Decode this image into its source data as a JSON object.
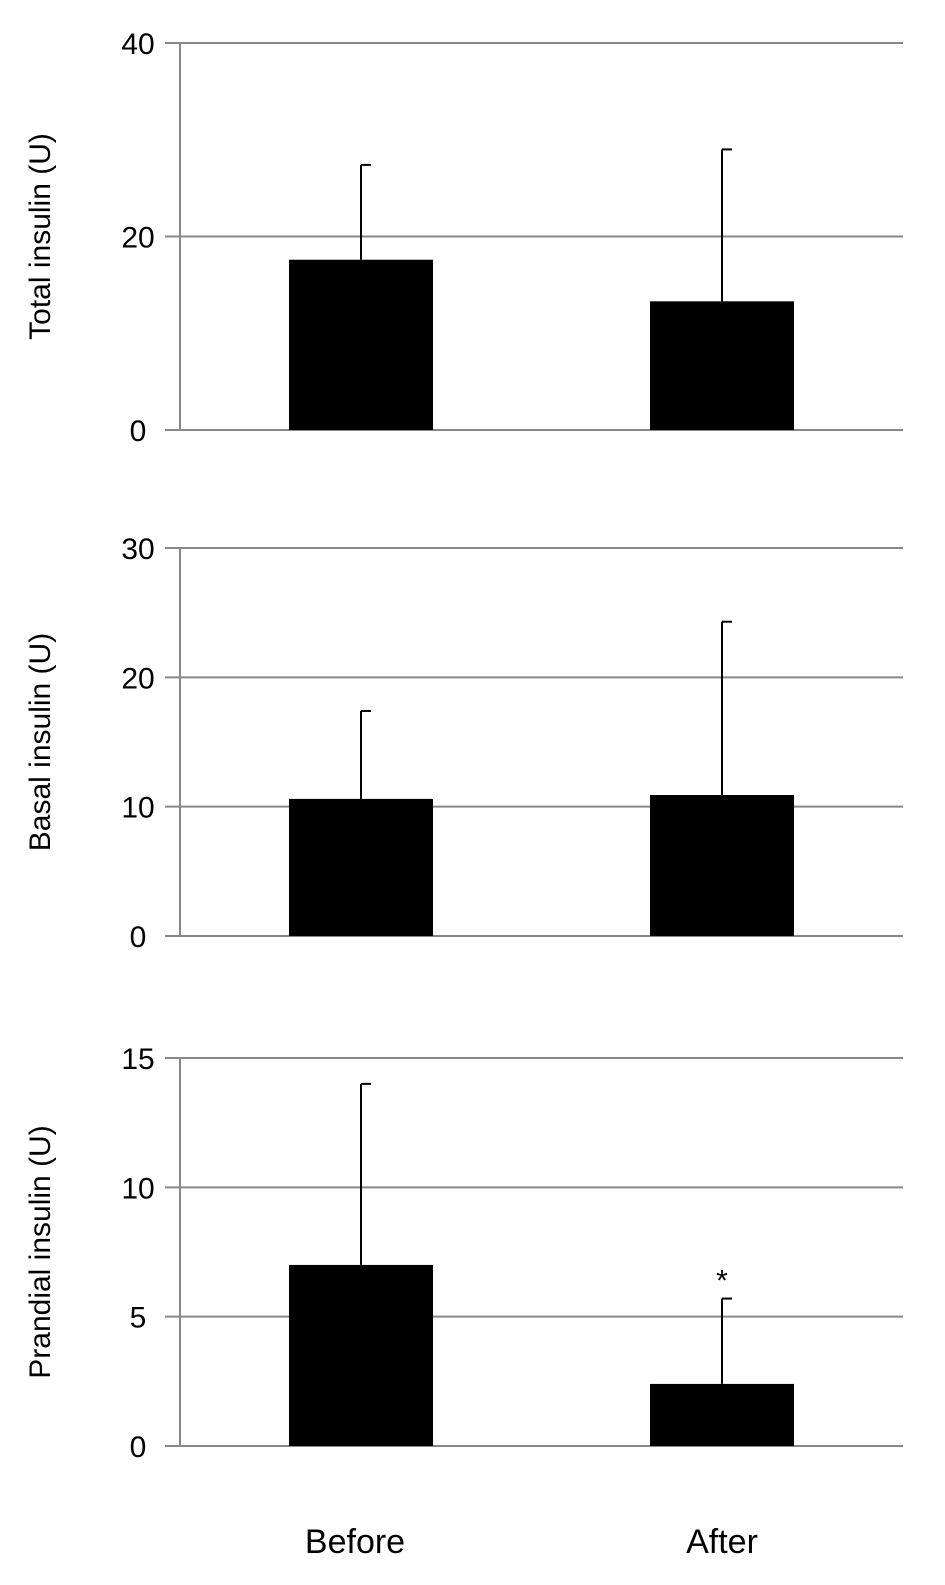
{
  "chart_data": [
    {
      "type": "bar",
      "categories": [
        "Before",
        "After"
      ],
      "values": [
        17.6,
        13.3
      ],
      "error_upper": [
        27.4,
        29.0
      ],
      "ylabel": "Total insulin (U)",
      "ylim": [
        0,
        40
      ],
      "yticks": [
        0,
        20,
        40
      ],
      "grid": true,
      "annotations": []
    },
    {
      "type": "bar",
      "categories": [
        "Before",
        "After"
      ],
      "values": [
        10.6,
        10.9
      ],
      "error_upper": [
        17.4,
        24.3
      ],
      "ylabel": "Basal insulin (U)",
      "ylim": [
        0,
        30
      ],
      "yticks": [
        0,
        10,
        20,
        30
      ],
      "grid": true,
      "annotations": []
    },
    {
      "type": "bar",
      "categories": [
        "Before",
        "After"
      ],
      "values": [
        7.0,
        2.4
      ],
      "error_upper": [
        14.0,
        5.7
      ],
      "ylabel": "Prandial insulin (U)",
      "ylim": [
        0,
        15
      ],
      "yticks": [
        0,
        5,
        10,
        15
      ],
      "grid": true,
      "annotations": [
        {
          "category": "After",
          "text": "*"
        }
      ]
    }
  ],
  "x_axis": {
    "labels": [
      "Before",
      "After"
    ]
  },
  "colors": {
    "bar": "#000000",
    "grid": "#888888",
    "axis": "#888888"
  }
}
